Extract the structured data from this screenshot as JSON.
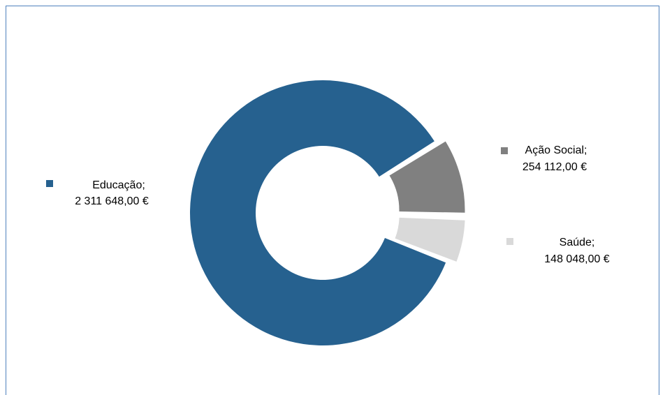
{
  "chart_data": {
    "type": "donut",
    "categories": [
      "Educação;",
      "Ação Social;",
      "Saúde;"
    ],
    "values": [
      2311648,
      254112,
      148048
    ],
    "value_labels": [
      "2 311 648,00 €",
      "254 112,00 €",
      "148 048,00 €"
    ],
    "colors": [
      "#26618f",
      "#808080",
      "#d9d9d9"
    ]
  }
}
